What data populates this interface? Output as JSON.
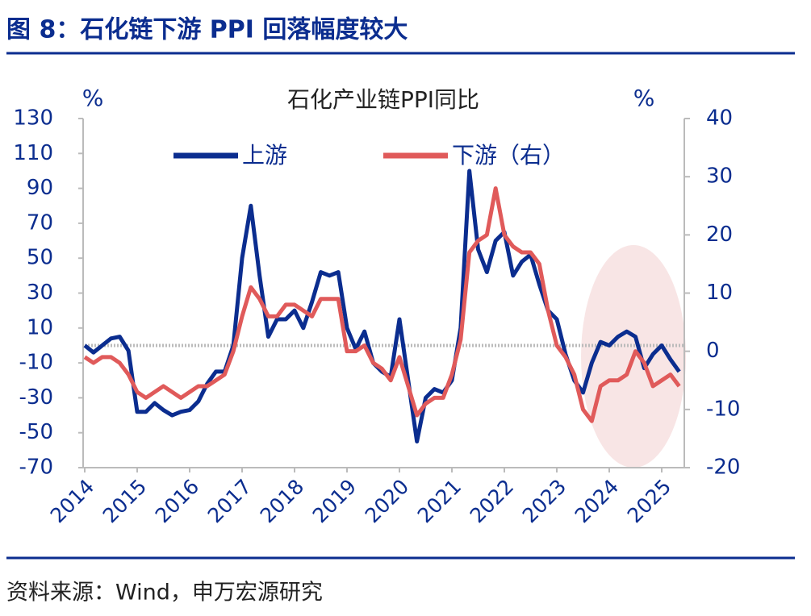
{
  "header": {
    "title": "图 8：石化链下游 PPI 回落幅度较大"
  },
  "chart_data": {
    "type": "line",
    "title": "石化产业链PPI同比",
    "y_unit": "%",
    "y2_unit": "%",
    "categories": [
      "2014",
      null,
      null,
      null,
      null,
      null,
      "2015",
      null,
      null,
      null,
      null,
      null,
      "2016",
      null,
      null,
      null,
      null,
      null,
      "2017",
      null,
      null,
      null,
      null,
      null,
      "2018",
      null,
      null,
      null,
      null,
      null,
      "2019",
      null,
      null,
      null,
      null,
      null,
      "2020",
      null,
      null,
      null,
      null,
      null,
      "2021",
      null,
      null,
      null,
      null,
      null,
      "2022",
      null,
      null,
      null,
      null,
      null,
      "2023",
      null,
      null,
      null,
      null,
      null,
      "2024",
      null,
      null,
      null,
      null,
      null,
      "2025",
      null,
      null
    ],
    "series": [
      {
        "name": "上游",
        "color": "#0b2d8f",
        "axis": "y",
        "values": [
          0,
          -4,
          0,
          4,
          5,
          -3,
          -38,
          -38,
          -33,
          -37,
          -40,
          -38,
          -37,
          -32,
          -22,
          -15,
          -15,
          0,
          50,
          80,
          40,
          5,
          15,
          15,
          20,
          10,
          25,
          42,
          40,
          42,
          10,
          -2,
          8,
          -10,
          -15,
          -18,
          15,
          -20,
          -55,
          -30,
          -25,
          -27,
          -20,
          10,
          100,
          55,
          42,
          60,
          65,
          40,
          48,
          52,
          35,
          20,
          15,
          -5,
          -20,
          -27,
          -10,
          2,
          0,
          5,
          8,
          5,
          -13,
          -5,
          0,
          -8,
          -15
        ]
      },
      {
        "name": "下游（右）",
        "color": "#e05a5a",
        "axis": "y2",
        "values": [
          -1,
          -2,
          -1,
          -1,
          -2,
          -4,
          -7,
          -8,
          -7,
          -6,
          -7,
          -8,
          -7,
          -6,
          -6,
          -5,
          -4,
          0,
          6,
          11,
          9,
          6,
          6,
          8,
          8,
          7,
          6,
          9,
          9,
          9,
          0,
          0,
          1,
          -2,
          -3,
          -5,
          -1,
          -6,
          -11,
          -9,
          -8,
          -8,
          -4,
          2,
          17,
          19,
          20,
          28,
          20,
          18,
          17,
          17,
          15,
          7,
          1,
          -1,
          -4,
          -10,
          -12,
          -6,
          -5,
          -5,
          -4,
          0,
          -2,
          -6,
          -5,
          -4,
          -6
        ]
      }
    ],
    "ylim": [
      -70,
      130
    ],
    "yticks": [
      -70,
      -50,
      -30,
      -10,
      10,
      30,
      50,
      70,
      90,
      110,
      130
    ],
    "y2lim": [
      -20,
      40
    ],
    "y2ticks": [
      -20,
      -10,
      0,
      10,
      20,
      30,
      40
    ],
    "zero_line": true,
    "legend": "top"
  },
  "source": "资料来源：Wind，申万宏源研究"
}
